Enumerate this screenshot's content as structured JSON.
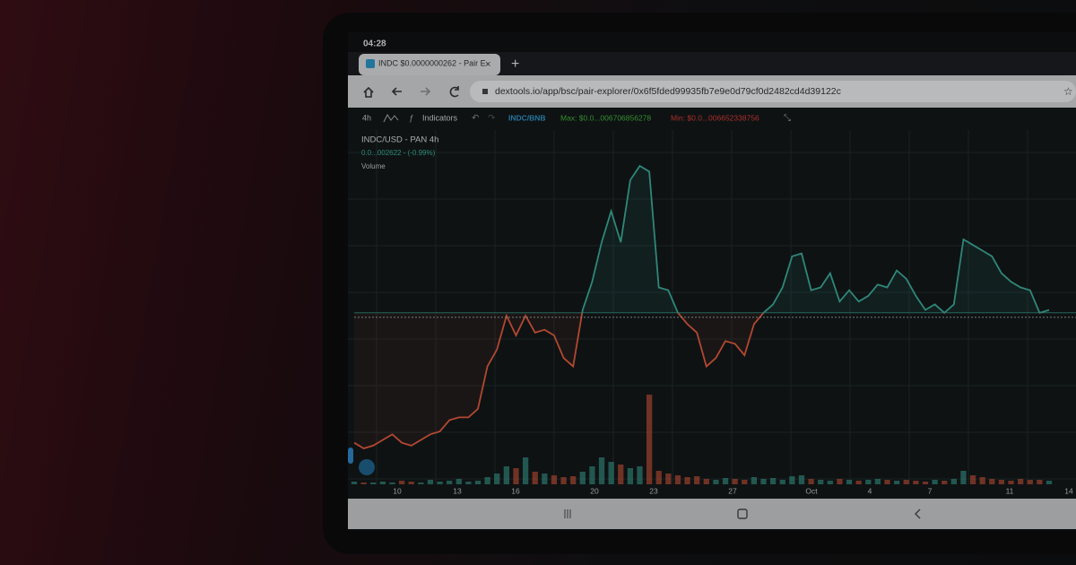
{
  "status_bar": {
    "time": "04:28"
  },
  "browser": {
    "tab_title": "INDC $0.0000000262 - Pair E",
    "url": "dextools.io/app/bsc/pair-explorer/0x6f5fded99935fb7e9e0d79cf0d2482cd4d39122c"
  },
  "toolbar": {
    "interval": "4h",
    "indicators": "Indicators",
    "pair": "INDC/BNB",
    "max": "Max: $0.0...006706856278",
    "min": "Min: $0.0...006652338756"
  },
  "chart": {
    "type": "line",
    "title": "INDC/USD - PAN  4h",
    "price_label": "0.0...002622 - (-0.99%)",
    "volume_label": "Volume",
    "x_labels": [
      "10",
      "13",
      "16",
      "20",
      "23",
      "27",
      "Oct",
      "4",
      "7",
      "11",
      "14"
    ],
    "baseline": 48,
    "up_color": "#3aa594",
    "down_color": "#d9583c",
    "values": [
      2,
      0,
      1,
      3,
      5,
      2,
      1,
      3,
      5,
      6,
      10,
      11,
      11,
      14,
      29,
      35,
      47,
      40,
      47,
      41,
      42,
      40,
      32,
      29,
      49,
      59,
      73,
      84,
      73,
      95,
      100,
      98,
      57,
      56,
      48,
      44,
      41,
      29,
      32,
      38,
      37,
      33,
      44,
      48,
      51,
      57,
      68,
      69,
      56,
      57,
      62,
      52,
      56,
      52,
      54,
      58,
      57,
      63,
      60,
      54,
      49,
      51,
      48,
      51,
      74,
      72,
      70,
      68,
      62,
      59,
      57,
      56,
      48,
      49
    ],
    "volume": [
      3,
      2,
      2,
      3,
      2,
      4,
      3,
      2,
      5,
      3,
      4,
      6,
      3,
      4,
      8,
      12,
      20,
      18,
      30,
      14,
      12,
      10,
      8,
      9,
      14,
      20,
      30,
      25,
      22,
      18,
      20,
      100,
      15,
      12,
      10,
      8,
      9,
      6,
      5,
      7,
      6,
      5,
      8,
      6,
      7,
      5,
      9,
      10,
      6,
      5,
      4,
      6,
      5,
      4,
      5,
      6,
      5,
      4,
      5,
      4,
      3,
      5,
      4,
      6,
      15,
      10,
      8,
      6,
      5,
      4,
      6,
      5,
      5,
      4
    ]
  }
}
